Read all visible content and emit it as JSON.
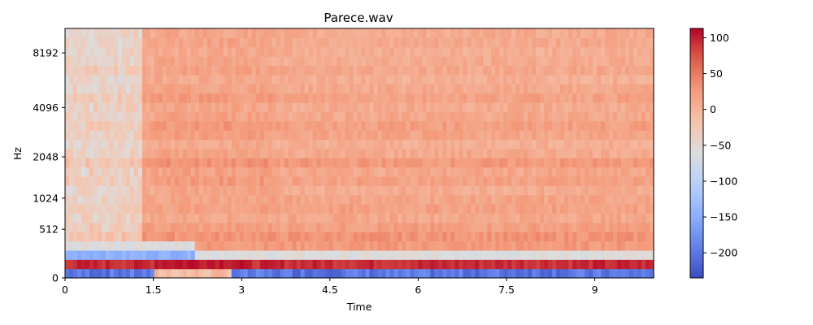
{
  "chart_data": {
    "type": "heatmap",
    "title": "Parece.wav",
    "xlabel": "Time",
    "ylabel": "Hz",
    "xlim": [
      0,
      10
    ],
    "x_ticks": [
      0,
      1.5,
      3,
      4.5,
      6,
      7.5,
      9
    ],
    "x_tick_labels": [
      "0",
      "1.5",
      "3",
      "4.5",
      "6",
      "7.5",
      "9"
    ],
    "y_scale": "mel",
    "y_ticks": [
      0,
      512,
      1024,
      2048,
      4096,
      8192
    ],
    "y_tick_labels": [
      "0",
      "512",
      "1024",
      "2048",
      "4096",
      "8192"
    ],
    "colormap": "coolwarm",
    "colorbar": {
      "vmin": -235,
      "vmax": 113,
      "ticks": [
        100,
        50,
        0,
        -50,
        -100,
        -150,
        -200
      ],
      "tick_labels": [
        "100",
        "50",
        "0",
        "−50",
        "−100",
        "−150",
        "−200"
      ]
    },
    "grid": false,
    "legend": "none",
    "band_profile_db": [
      -200,
      95,
      -60,
      25,
      30,
      20,
      12,
      18,
      15,
      8,
      18,
      12,
      25,
      10,
      5,
      15,
      20,
      12,
      8,
      18,
      10,
      5,
      12,
      8,
      6,
      10,
      8
    ]
  }
}
